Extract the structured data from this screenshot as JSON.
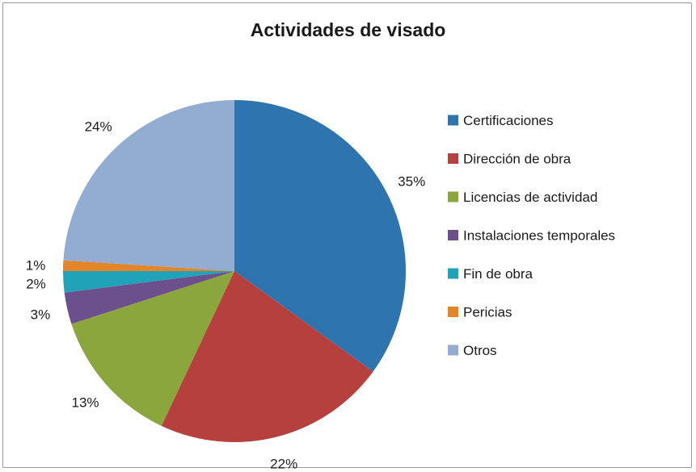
{
  "chart_data": {
    "type": "pie",
    "title": "Actividades de visado",
    "legend_position": "right",
    "slices": [
      {
        "label": "Certificaciones",
        "value": 35,
        "display": "35%",
        "color": "#2e75b0"
      },
      {
        "label": "Dirección de obra",
        "value": 22,
        "display": "22%",
        "color": "#b5403d"
      },
      {
        "label": "Licencias de actividad",
        "value": 13,
        "display": "13%",
        "color": "#8aa63c"
      },
      {
        "label": "Instalaciones temporales",
        "value": 3,
        "display": "3%",
        "color": "#6c4f8d"
      },
      {
        "label": "Fin de obra",
        "value": 2,
        "display": "2%",
        "color": "#20a2b8"
      },
      {
        "label": "Pericias",
        "value": 1,
        "display": "1%",
        "color": "#e5852a"
      },
      {
        "label": "Otros",
        "value": 24,
        "display": "24%",
        "color": "#93acd2"
      }
    ]
  }
}
